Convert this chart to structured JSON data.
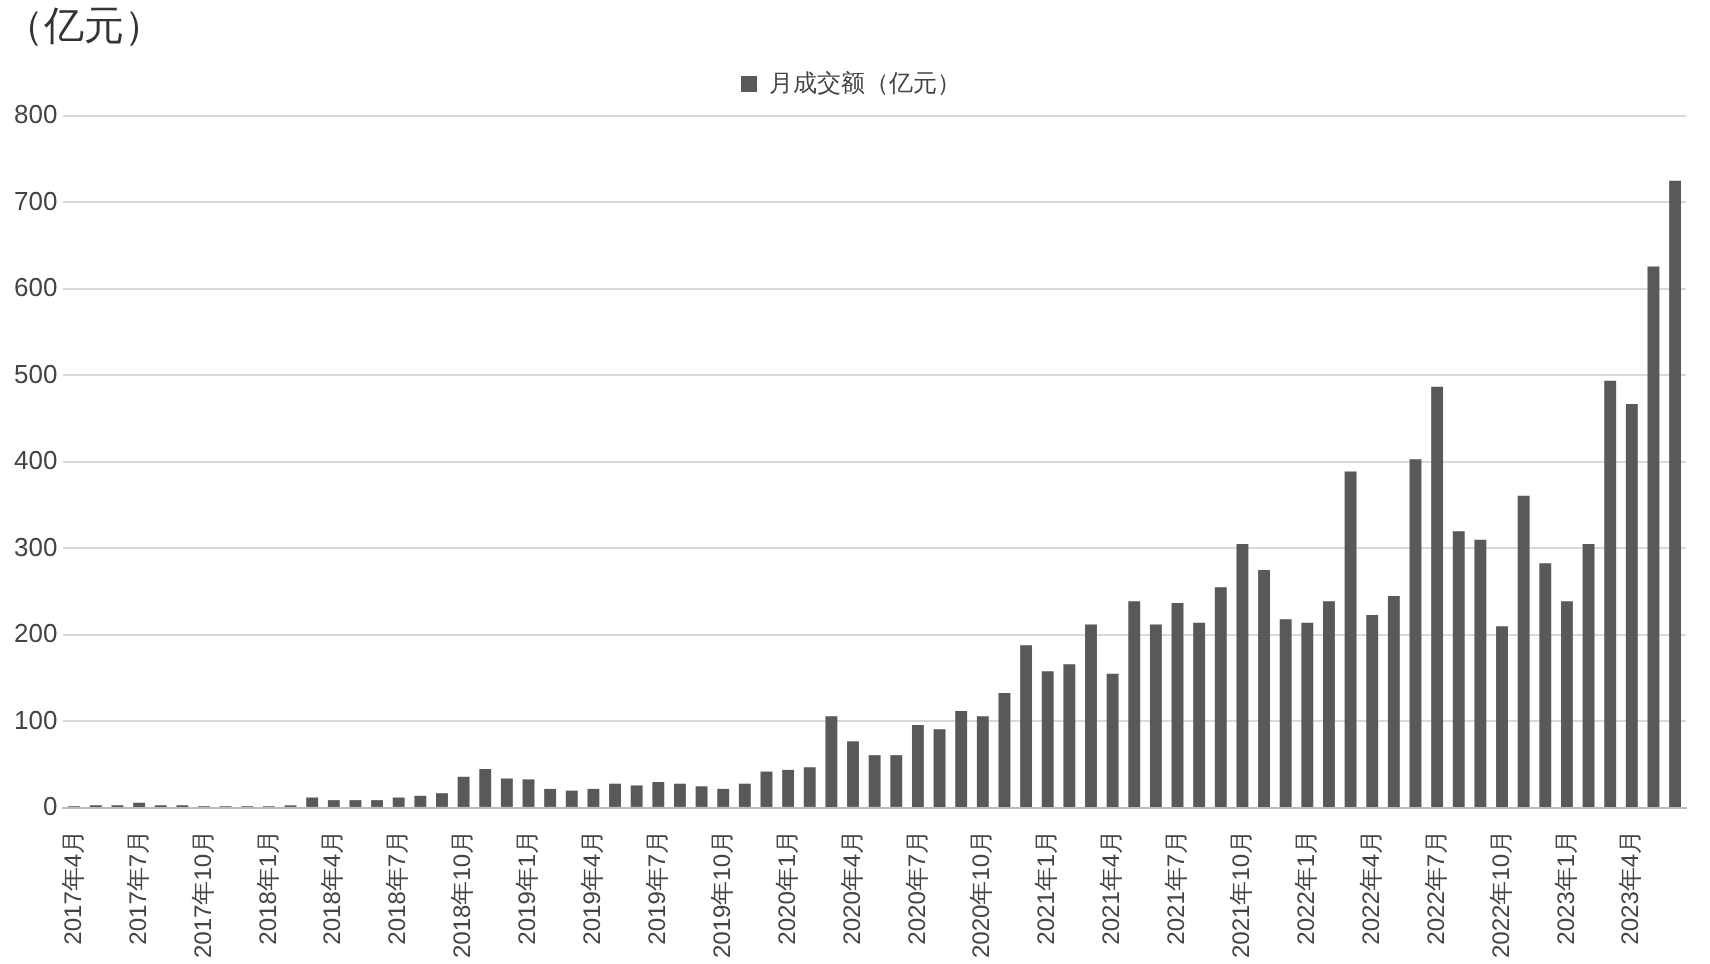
{
  "chart_data": {
    "type": "bar",
    "ylabel": "（亿元）",
    "categories": [
      "2017年4月",
      null,
      null,
      "2017年7月",
      null,
      null,
      "2017年10月",
      null,
      null,
      "2018年1月",
      null,
      null,
      "2018年4月",
      null,
      null,
      "2018年7月",
      null,
      null,
      "2018年10月",
      null,
      null,
      "2019年1月",
      null,
      null,
      "2019年4月",
      null,
      null,
      "2019年7月",
      null,
      null,
      "2019年10月",
      null,
      null,
      "2020年1月",
      null,
      null,
      "2020年4月",
      null,
      null,
      "2020年7月",
      null,
      null,
      "2020年10月",
      null,
      null,
      "2021年1月",
      null,
      null,
      "2021年4月",
      null,
      null,
      "2021年7月",
      null,
      null,
      "2021年10月",
      null,
      null,
      "2022年1月",
      null,
      null,
      "2022年4月",
      null,
      null,
      "2022年7月",
      null,
      null,
      "2022年10月",
      null,
      null,
      "2023年1月",
      null,
      null,
      "2023年4月",
      null,
      null
    ],
    "series": [
      {
        "name": "月成交额（亿元）",
        "color": "#595959",
        "values": [
          2,
          3,
          3,
          6,
          3,
          3,
          2,
          2,
          2,
          2,
          3,
          12,
          9,
          9,
          9,
          12,
          14,
          17,
          36,
          45,
          34,
          33,
          22,
          20,
          22,
          28,
          26,
          30,
          28,
          25,
          22,
          28,
          42,
          44,
          47,
          106,
          77,
          61,
          61,
          96,
          91,
          112,
          106,
          133,
          188,
          158,
          166,
          212,
          155,
          239,
          212,
          237,
          214,
          255,
          305,
          275,
          218,
          214,
          239,
          389,
          223,
          245,
          403,
          487,
          320,
          310,
          210,
          361,
          283,
          239,
          305,
          494,
          467,
          626,
          725
        ]
      }
    ],
    "ylim": [
      0,
      800
    ],
    "yticks": [
      0,
      100,
      200,
      300,
      400,
      500,
      600,
      700,
      800
    ],
    "grid": "y",
    "legend": "top"
  }
}
